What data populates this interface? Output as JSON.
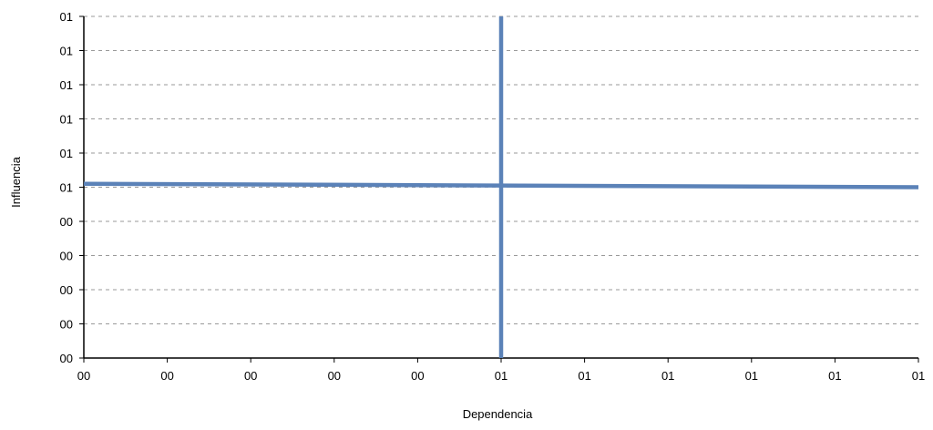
{
  "chart_data": {
    "type": "line",
    "title": "",
    "xlabel": "Dependencia",
    "ylabel": "Influencia",
    "xlim": [
      0,
      10
    ],
    "ylim": [
      0,
      10
    ],
    "x_tick_labels": [
      "00",
      "00",
      "00",
      "00",
      "00",
      "01",
      "01",
      "01",
      "01",
      "01",
      "01"
    ],
    "y_tick_labels": [
      "00",
      "00",
      "00",
      "00",
      "00",
      "01",
      "01",
      "01",
      "01",
      "01",
      "01"
    ],
    "grid": {
      "horizontal": true,
      "vertical": false,
      "style": "dashed"
    },
    "legend": "none",
    "series": [
      {
        "points": [
          [
            0,
            5.1
          ],
          [
            10,
            5.0
          ]
        ]
      },
      {
        "points": [
          [
            5,
            0
          ],
          [
            5,
            10
          ]
        ]
      }
    ],
    "colors": {
      "series": "#5B82B8",
      "grid": "#9a9a9a",
      "axis": "#000000"
    }
  }
}
